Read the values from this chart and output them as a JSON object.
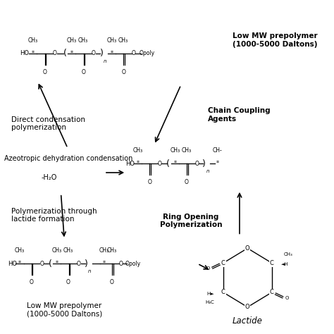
{
  "bg_color": "#ffffff",
  "figsize": [
    4.74,
    4.74
  ],
  "dpi": 100,
  "top_polymer_label": "Low MW prepolymer\n(1000-5000 Daltons)",
  "bot_polymer_label": "Low MW prepolymer\n(1000-5000 Daltons)",
  "lactide_label": "Lactide",
  "annotations": {
    "direct_condensation": "Direct condensation\npolymerization",
    "azeotropic": "Azeotropic dehydration condensation",
    "h2o": "-H₂O",
    "chain_coupling": "Chain Coupling\nAgents",
    "polymerization_lactide": "Polymerization through\nlactide formation",
    "ring_opening": "Ring Opening\nPolymerization"
  },
  "font_size_formula": 6.0,
  "font_size_label": 7.5,
  "font_size_annot": 7.5
}
